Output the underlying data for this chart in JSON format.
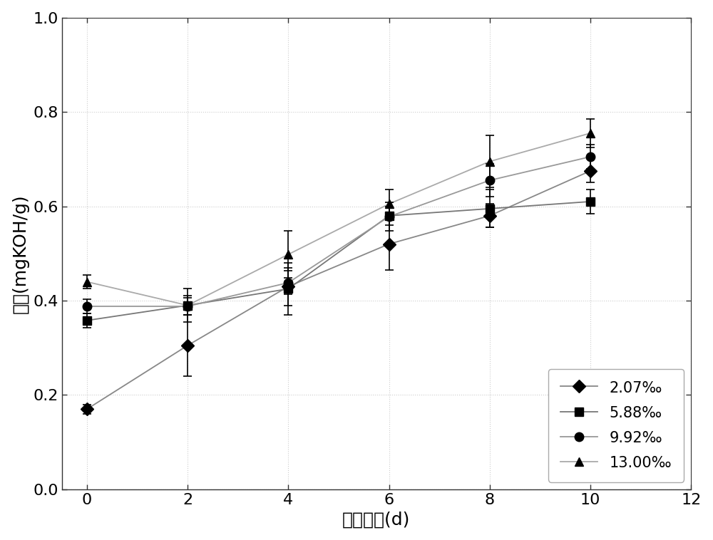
{
  "series": [
    {
      "label": "2.07‰",
      "marker": "D",
      "color": "#000000",
      "line_color": "#888888",
      "x": [
        0,
        2,
        4,
        6,
        8,
        10
      ],
      "y": [
        0.17,
        0.305,
        0.43,
        0.52,
        0.58,
        0.675
      ],
      "yerr": [
        0.01,
        0.065,
        0.04,
        0.055,
        0.025,
        0.025
      ]
    },
    {
      "label": "5.88‰",
      "marker": "s",
      "color": "#000000",
      "line_color": "#777777",
      "x": [
        0,
        2,
        4,
        6,
        8,
        10
      ],
      "y": [
        0.358,
        0.39,
        0.425,
        0.58,
        0.595,
        0.61
      ],
      "yerr": [
        0.015,
        0.035,
        0.055,
        0.02,
        0.04,
        0.025
      ]
    },
    {
      "label": "9.92‰",
      "marker": "o",
      "color": "#000000",
      "line_color": "#999999",
      "x": [
        0,
        2,
        4,
        6,
        8,
        10
      ],
      "y": [
        0.388,
        0.388,
        0.438,
        0.578,
        0.655,
        0.705
      ],
      "yerr": [
        0.015,
        0.018,
        0.025,
        0.03,
        0.035,
        0.025
      ]
    },
    {
      "label": "13.00‰",
      "marker": "^",
      "color": "#000000",
      "line_color": "#aaaaaa",
      "x": [
        0,
        2,
        4,
        6,
        8,
        10
      ],
      "y": [
        0.44,
        0.39,
        0.498,
        0.605,
        0.695,
        0.755
      ],
      "yerr": [
        0.015,
        0.02,
        0.05,
        0.03,
        0.055,
        0.03
      ]
    }
  ],
  "xlabel": "加热时间(d)",
  "ylabel": "酸价(mgKOH/g)",
  "xlim": [
    -0.5,
    12
  ],
  "ylim": [
    0.0,
    1.0
  ],
  "xticks": [
    0,
    2,
    4,
    6,
    8,
    10,
    12
  ],
  "yticks": [
    0.0,
    0.2,
    0.4,
    0.6,
    0.8,
    1.0
  ],
  "background_color": "#ffffff",
  "label_fontsize": 18,
  "tick_fontsize": 16,
  "legend_fontsize": 15,
  "marker_size": 9,
  "line_width": 1.3
}
